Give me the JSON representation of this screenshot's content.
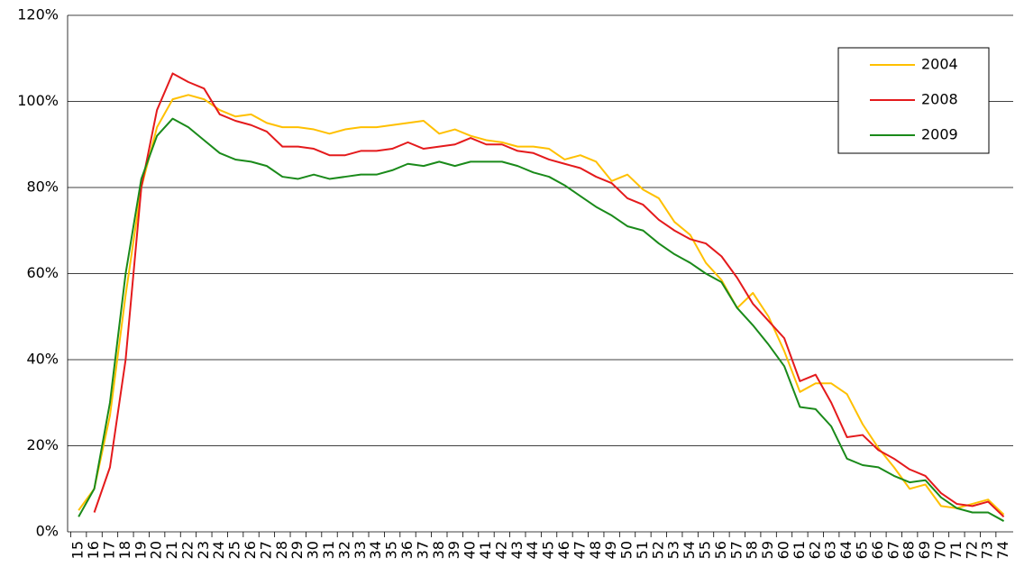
{
  "chart_data": {
    "type": "line",
    "x": [
      15,
      16,
      17,
      18,
      19,
      20,
      21,
      22,
      23,
      24,
      25,
      26,
      27,
      28,
      29,
      30,
      31,
      32,
      33,
      34,
      35,
      36,
      37,
      38,
      39,
      40,
      41,
      42,
      43,
      44,
      45,
      46,
      47,
      48,
      49,
      50,
      51,
      52,
      53,
      54,
      55,
      56,
      57,
      58,
      59,
      60,
      61,
      62,
      63,
      64,
      65,
      66,
      67,
      68,
      69,
      70,
      71,
      72,
      73,
      74
    ],
    "series": [
      {
        "name": "2004",
        "color": "#ffc000",
        "values": [
          5,
          10,
          27,
          55,
          80,
          94,
          100.5,
          101.5,
          100.5,
          98,
          96.5,
          97,
          95,
          94,
          94,
          93.5,
          92.5,
          93.5,
          94,
          94,
          94.5,
          95,
          95.5,
          92.5,
          93.5,
          92,
          91,
          90.5,
          89.5,
          89.5,
          89,
          86.5,
          87.5,
          86,
          81.5,
          83,
          79.5,
          77.5,
          72,
          69,
          62.5,
          58.5,
          52,
          55.5,
          50,
          42,
          32.5,
          34.5,
          34.5,
          32,
          25,
          19.5,
          15,
          10,
          11,
          6,
          5.5,
          6.5,
          7.5,
          4
        ]
      },
      {
        "name": "2008",
        "color": "#e41a1c",
        "values": [
          null,
          4.5,
          15,
          40,
          80,
          98,
          106.5,
          104.5,
          103,
          97,
          95.5,
          94.5,
          93,
          89.5,
          89.5,
          89,
          87.5,
          87.5,
          88.5,
          88.5,
          89,
          90.5,
          89,
          89.5,
          90,
          91.5,
          90,
          90,
          88.5,
          88,
          86.5,
          85.5,
          84.5,
          82.5,
          81,
          77.5,
          76,
          72.5,
          70,
          68,
          67,
          64,
          59,
          53,
          49,
          45,
          35,
          36.5,
          30,
          22,
          22.5,
          19,
          17,
          14.5,
          13,
          9,
          6.5,
          6,
          7,
          3.5
        ]
      },
      {
        "name": "2009",
        "color": "#1a8a1a",
        "values": [
          3.5,
          10,
          30,
          60,
          82,
          92,
          96,
          94,
          91,
          88,
          86.5,
          86,
          85,
          82.5,
          82,
          83,
          82,
          82.5,
          83,
          83,
          84,
          85.5,
          85,
          86,
          85,
          86,
          86,
          86,
          85,
          83.5,
          82.5,
          80.5,
          78,
          75.5,
          73.5,
          71,
          70,
          67,
          64.5,
          62.5,
          60,
          58,
          52,
          48,
          43.5,
          38.5,
          29,
          28.5,
          24.5,
          17,
          15.5,
          15,
          13,
          11.5,
          12,
          8,
          5.5,
          4.5,
          4.5,
          2.5
        ]
      }
    ],
    "xlim": [
      14.3,
      74.6
    ],
    "xticks": [
      15,
      16,
      17,
      18,
      19,
      20,
      21,
      22,
      23,
      24,
      25,
      26,
      27,
      28,
      29,
      30,
      31,
      32,
      33,
      34,
      35,
      36,
      37,
      38,
      39,
      40,
      41,
      42,
      43,
      44,
      45,
      46,
      47,
      48,
      49,
      50,
      51,
      52,
      53,
      54,
      55,
      56,
      57,
      58,
      59,
      60,
      61,
      62,
      63,
      64,
      65,
      66,
      67,
      68,
      69,
      70,
      71,
      72,
      73,
      74
    ],
    "ylim": [
      0,
      120
    ],
    "yticks": [
      {
        "value": 0,
        "label": "0%"
      },
      {
        "value": 20,
        "label": "20%"
      },
      {
        "value": 40,
        "label": "40%"
      },
      {
        "value": 60,
        "label": "60%"
      },
      {
        "value": 80,
        "label": "80%"
      },
      {
        "value": 100,
        "label": "100%"
      },
      {
        "value": 120,
        "label": "120%"
      }
    ],
    "grid": true,
    "legend": "upper right"
  }
}
